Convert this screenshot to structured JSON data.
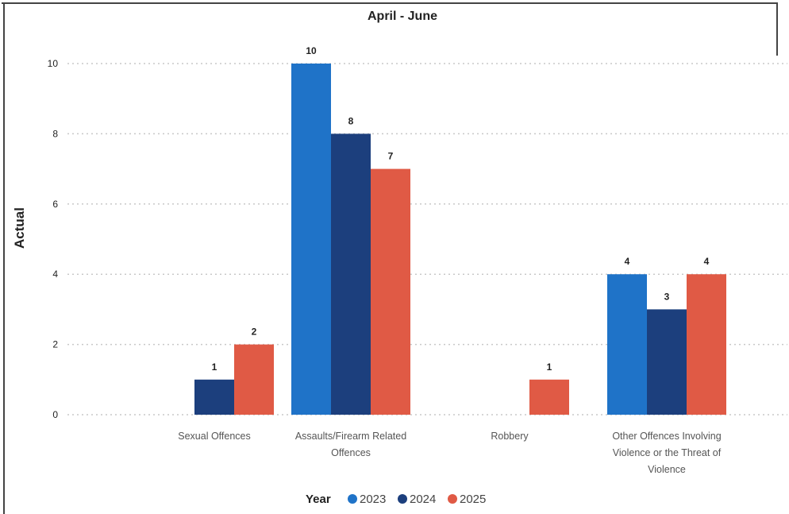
{
  "chart_data": {
    "type": "bar",
    "title": "April - June",
    "xlabel": "",
    "ylabel": "Actual",
    "ylim": [
      0,
      10
    ],
    "yticks": [
      0,
      2,
      4,
      6,
      8,
      10
    ],
    "grid": true,
    "legend": {
      "title": "Year",
      "placement": "bottom"
    },
    "categories": [
      "Sexual Offences",
      "Assaults/Firearm Related Offences",
      "Robbery",
      "Other Offences Involving Violence or the Threat of Violence"
    ],
    "category_lines": [
      [
        "Sexual Offences"
      ],
      [
        "Assaults/Firearm Related",
        "Offences"
      ],
      [
        "Robbery"
      ],
      [
        "Other Offences Involving",
        "Violence or the Threat of",
        "Violence"
      ]
    ],
    "series": [
      {
        "name": "2023",
        "color": "#1f73c8",
        "values": [
          null,
          10,
          null,
          4
        ]
      },
      {
        "name": "2024",
        "color": "#1c3f7d",
        "values": [
          1,
          8,
          null,
          3
        ]
      },
      {
        "name": "2025",
        "color": "#e05a45",
        "values": [
          2,
          7,
          1,
          4
        ]
      }
    ]
  }
}
